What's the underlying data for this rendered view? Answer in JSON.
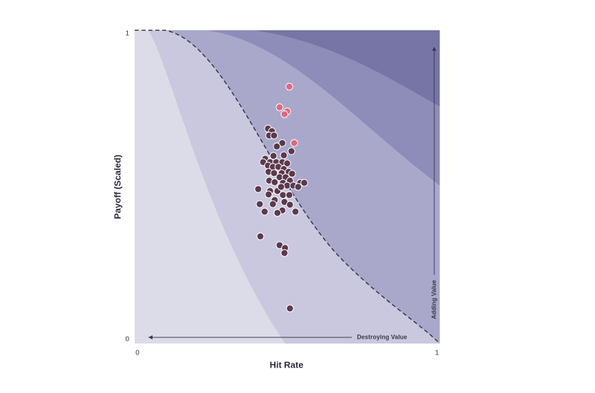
{
  "chart_data": {
    "type": "scatter",
    "x_label": "Hit Rate",
    "y_label": "Payoff (Scaled)",
    "annotations": [
      "Destroying Value",
      "Adding Value"
    ],
    "xlim": [
      0,
      1
    ],
    "ylim": [
      0,
      1
    ],
    "xticks": [
      0,
      1
    ],
    "yticks": [
      0,
      1
    ],
    "series": [
      {
        "color": "#5b3a4d",
        "x": [
          0.437,
          0.45,
          0.441,
          0.457,
          0.484,
          0.466,
          0.514,
          0.489,
          0.455,
          0.428,
          0.421,
          0.444,
          0.464,
          0.484,
          0.5,
          0.437,
          0.453,
          0.471,
          0.489,
          0.505,
          0.439,
          0.457,
          0.482,
          0.516,
          0.475,
          0.495,
          0.509,
          0.441,
          0.459,
          0.486,
          0.543,
          0.556,
          0.405,
          0.444,
          0.468,
          0.5,
          0.52,
          0.536,
          0.48,
          0.486,
          0.507,
          0.439,
          0.459,
          0.491,
          0.41,
          0.453,
          0.509,
          0.484,
          0.426,
          0.468,
          0.527,
          0.412,
          0.475,
          0.493,
          0.491,
          0.509
        ],
        "values": [
          0.686,
          0.678,
          0.664,
          0.664,
          0.64,
          0.629,
          0.614,
          0.601,
          0.599,
          0.59,
          0.579,
          0.579,
          0.579,
          0.579,
          0.575,
          0.568,
          0.564,
          0.564,
          0.557,
          0.548,
          0.548,
          0.544,
          0.544,
          0.542,
          0.531,
          0.531,
          0.52,
          0.52,
          0.515,
          0.513,
          0.513,
          0.513,
          0.493,
          0.487,
          0.487,
          0.504,
          0.504,
          0.5,
          0.5,
          0.474,
          0.474,
          0.476,
          0.458,
          0.452,
          0.445,
          0.445,
          0.443,
          0.425,
          0.421,
          0.417,
          0.421,
          0.342,
          0.314,
          0.305,
          0.289,
          0.112
        ]
      },
      {
        "color": "#e0687e",
        "x": [
          0.507,
          0.475,
          0.5,
          0.491,
          0.523
        ],
        "values": [
          0.82,
          0.754,
          0.741,
          0.732,
          0.64
        ]
      }
    ]
  }
}
